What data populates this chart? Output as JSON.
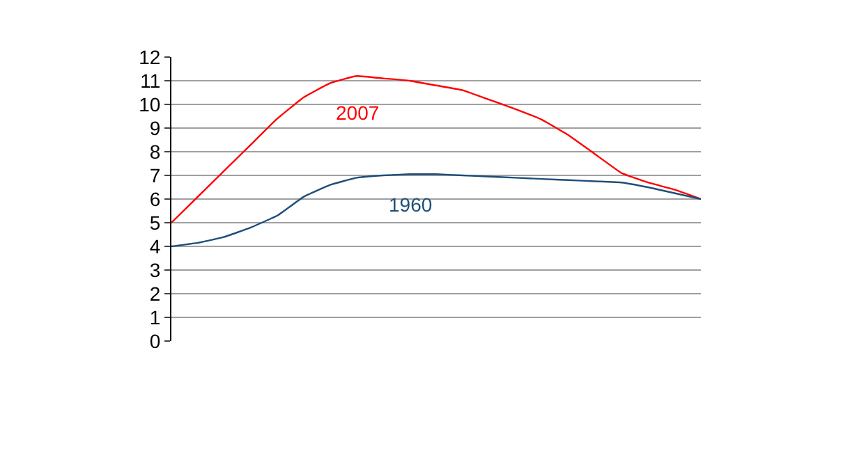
{
  "chart_data": {
    "type": "line",
    "categories": [
      null,
      null,
      null,
      null,
      null,
      null,
      null,
      null,
      null,
      null,
      null,
      null,
      null,
      null,
      null,
      null,
      null,
      null,
      null,
      null,
      null
    ],
    "series": [
      {
        "name": "2007",
        "color": "#ff0000",
        "values": [
          5.0,
          6.1,
          7.2,
          8.3,
          9.4,
          10.3,
          10.9,
          11.2,
          11.1,
          11.0,
          10.8,
          10.6,
          10.2,
          9.8,
          9.35,
          8.7,
          7.9,
          7.1,
          6.7,
          6.4,
          6.0
        ]
      },
      {
        "name": "1960",
        "color": "#1f4e79",
        "values": [
          4.0,
          4.15,
          4.4,
          4.8,
          5.3,
          6.1,
          6.6,
          6.9,
          7.0,
          7.05,
          7.05,
          7.0,
          6.95,
          6.9,
          6.85,
          6.8,
          6.75,
          6.7,
          6.5,
          6.25,
          6.0
        ]
      }
    ],
    "ylim": [
      0,
      12
    ],
    "yticks": [
      0,
      1,
      2,
      3,
      4,
      5,
      6,
      7,
      8,
      9,
      10,
      11,
      12
    ],
    "grid": "y",
    "legend": false,
    "marker": "none",
    "line_style": "solid"
  }
}
